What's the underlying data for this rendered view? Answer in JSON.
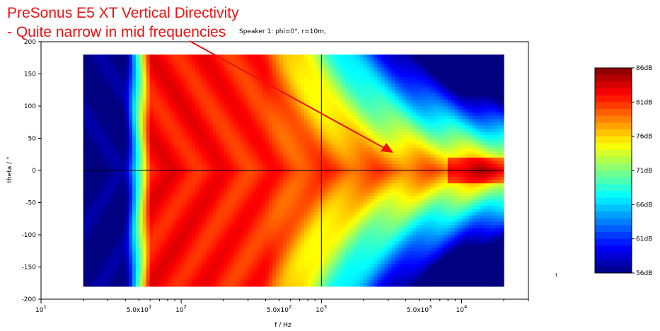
{
  "annotation": {
    "title": "PreSonus E5 XT Vertical Directivity",
    "subtitle": " - Quite narrow in mid frequencies",
    "color": "#ee1111"
  },
  "chart_data": {
    "type": "heatmap",
    "title": "Speaker 1: phi=0°, r=10m,",
    "xlabel": "f / Hz",
    "ylabel": "theta / °",
    "x_scale": "log",
    "xlim": [
      10,
      30000
    ],
    "ylim": [
      -200,
      200
    ],
    "data_x_range": [
      20,
      20000
    ],
    "data_y_range": [
      -180,
      180
    ],
    "x_ticks": [
      {
        "value": 10,
        "label": "10",
        "sup": "1"
      },
      {
        "value": 50,
        "label": "5.0x10",
        "sup": "1"
      },
      {
        "value": 100,
        "label": "10",
        "sup": "2"
      },
      {
        "value": 500,
        "label": "5.0x10",
        "sup": "2"
      },
      {
        "value": 1000,
        "label": "10",
        "sup": "3"
      },
      {
        "value": 5000,
        "label": "5.0x10",
        "sup": "3"
      },
      {
        "value": 10000,
        "label": "10",
        "sup": "4"
      }
    ],
    "y_ticks": [
      200,
      150,
      100,
      50,
      0,
      -50,
      -100,
      -150,
      -200
    ],
    "reference_lines": {
      "x": 1000,
      "y": 0
    },
    "colorbar": {
      "min": 56,
      "max": 86,
      "unit": "dB",
      "ticks": [
        "86dB",
        "81dB",
        "76dB",
        "71dB",
        "66dB",
        "61dB",
        "56dB"
      ]
    }
  }
}
